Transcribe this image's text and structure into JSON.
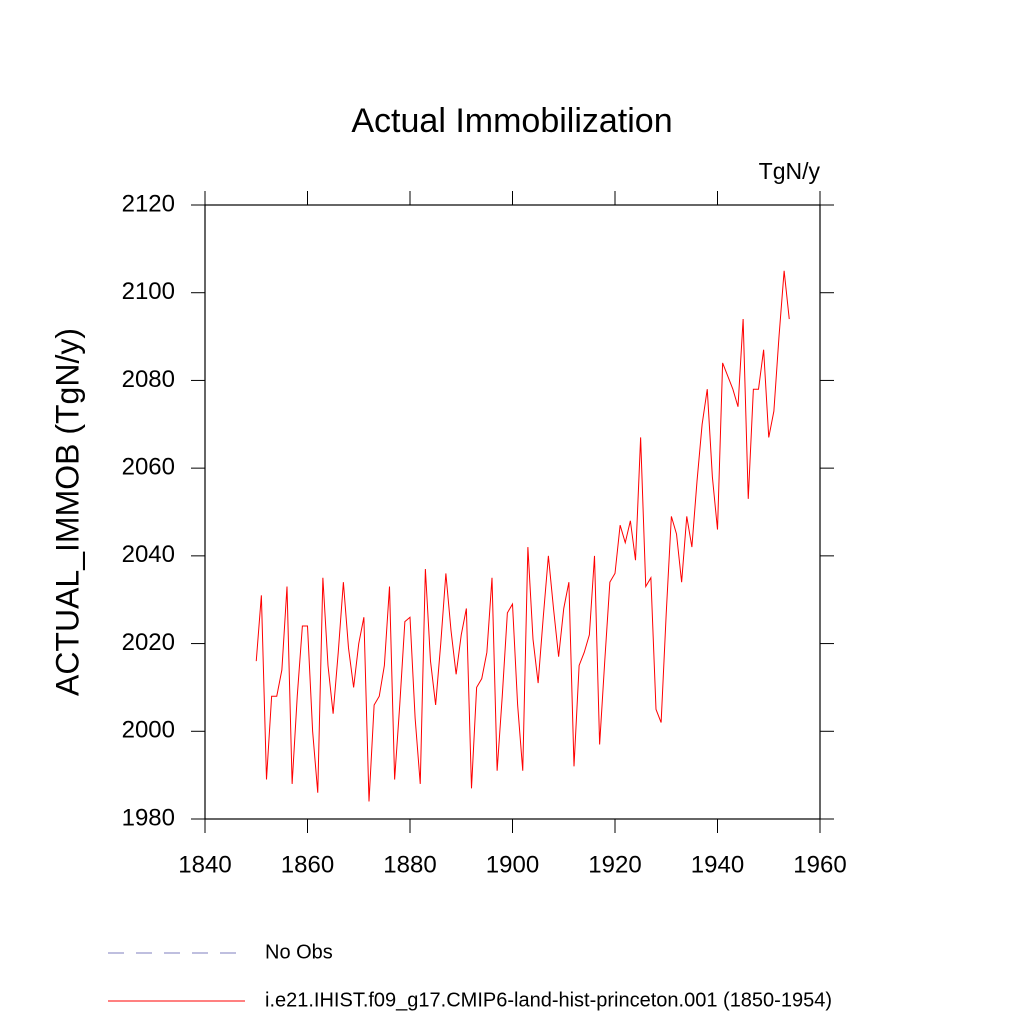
{
  "chart_data": {
    "type": "line",
    "title": "Actual Immobilization",
    "units": "TgN/y",
    "y_label": "ACTUAL_IMMOB  (TgN/y)",
    "x": [
      1850,
      1851,
      1852,
      1853,
      1854,
      1855,
      1856,
      1857,
      1858,
      1859,
      1860,
      1861,
      1862,
      1863,
      1864,
      1865,
      1866,
      1867,
      1868,
      1869,
      1870,
      1871,
      1872,
      1873,
      1874,
      1875,
      1876,
      1877,
      1878,
      1879,
      1880,
      1881,
      1882,
      1883,
      1884,
      1885,
      1886,
      1887,
      1888,
      1889,
      1890,
      1891,
      1892,
      1893,
      1894,
      1895,
      1896,
      1897,
      1898,
      1899,
      1900,
      1901,
      1902,
      1903,
      1904,
      1905,
      1906,
      1907,
      1908,
      1909,
      1910,
      1911,
      1912,
      1913,
      1914,
      1915,
      1916,
      1917,
      1918,
      1919,
      1920,
      1921,
      1922,
      1923,
      1924,
      1925,
      1926,
      1927,
      1928,
      1929,
      1930,
      1931,
      1932,
      1933,
      1934,
      1935,
      1936,
      1937,
      1938,
      1939,
      1940,
      1941,
      1942,
      1943,
      1944,
      1945,
      1946,
      1947,
      1948,
      1949,
      1950,
      1951,
      1952,
      1953,
      1954
    ],
    "series": [
      {
        "name": "No Obs",
        "color": "#7f7fbf",
        "dashed": true,
        "values": [
          null,
          null,
          null,
          null,
          null,
          null,
          null,
          null,
          null,
          null,
          null,
          null,
          null,
          null,
          null,
          null,
          null,
          null,
          null,
          null,
          null,
          null,
          null,
          null,
          null,
          null,
          null,
          null,
          null,
          null,
          null,
          null,
          null,
          null,
          null,
          null,
          null,
          null,
          null,
          null,
          null,
          null,
          null,
          null,
          null,
          null,
          null,
          null,
          null,
          null,
          null,
          null,
          null,
          null,
          null,
          null,
          null,
          null,
          null,
          null,
          null,
          null,
          null,
          null,
          null,
          null,
          null,
          null,
          null,
          null,
          null,
          null,
          null,
          null,
          null,
          null,
          null,
          null,
          null,
          null,
          null,
          null,
          null,
          null,
          null,
          null,
          null,
          null,
          null,
          null,
          null,
          null,
          null,
          null,
          null,
          null,
          null,
          null,
          null,
          null,
          null,
          null,
          null,
          null,
          null
        ]
      },
      {
        "name": "i.e21.IHIST.f09_g17.CMIP6-land-hist-princeton.001 (1850-1954)",
        "color": "#ff0000",
        "dashed": false,
        "values": [
          2016,
          2031,
          1989,
          2008,
          2008,
          2014,
          2033,
          1988,
          2008,
          2024,
          2024,
          2000,
          1986,
          2035,
          2015,
          2004,
          2018,
          2034,
          2019,
          2010,
          2020,
          2026,
          1984,
          2006,
          2008,
          2015,
          2033,
          1989,
          2006,
          2025,
          2026,
          2003,
          1988,
          2037,
          2016,
          2006,
          2020,
          2036,
          2023,
          2013,
          2022,
          2028,
          1987,
          2010,
          2012,
          2018,
          2035,
          1991,
          2008,
          2027,
          2029,
          2006,
          1991,
          2042,
          2021,
          2011,
          2026,
          2040,
          2028,
          2017,
          2028,
          2034,
          1992,
          2015,
          2018,
          2022,
          2040,
          1997,
          2016,
          2034,
          2036,
          2047,
          2043,
          2048,
          2039,
          2067,
          2033,
          2035,
          2005,
          2002,
          2027,
          2049,
          2045,
          2034,
          2049,
          2042,
          2057,
          2070,
          2078,
          2058,
          2046,
          2084,
          2081,
          2078,
          2074,
          2094,
          2053,
          2078,
          2078,
          2087,
          2067,
          2073,
          2090,
          2105,
          2094
        ]
      }
    ],
    "xlim": [
      1840,
      1960
    ],
    "xticks": [
      1840,
      1860,
      1880,
      1900,
      1920,
      1940,
      1960
    ],
    "ylim": [
      1980,
      2120
    ],
    "yticks": [
      1980,
      2000,
      2020,
      2040,
      2060,
      2080,
      2100,
      2120
    ],
    "grid": false
  }
}
